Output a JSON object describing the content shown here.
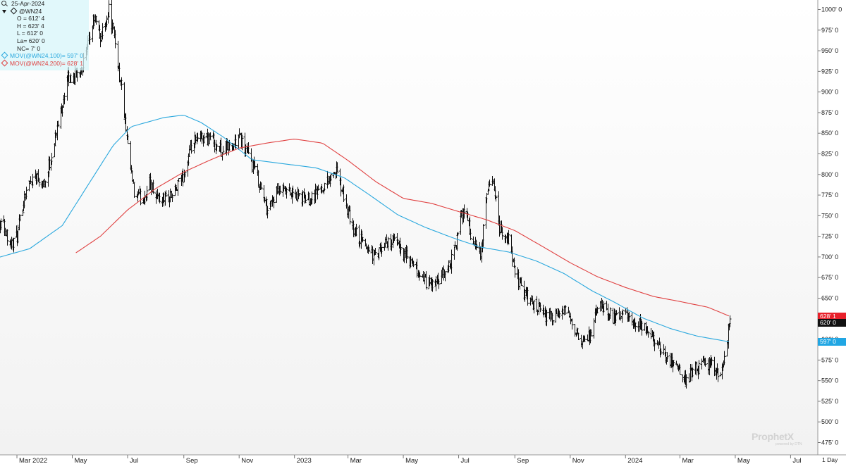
{
  "legend": {
    "date": "25-Apr-2024",
    "symbol": "@WN24",
    "open": "O = 612' 4",
    "high": "H = 623' 4",
    "low": "L = 612' 0",
    "last": "La= 620' 0",
    "net_change": "NC= 7' 0",
    "ma100_label": "MOV(@WN24,100)= 597' 0",
    "ma200_label": "MOV(@WN24,200)= 628' 1"
  },
  "price_tags": {
    "ma200": "628' 1",
    "last": "620' 0",
    "ma100": "597' 0"
  },
  "watermark": {
    "brand": "ProphetX",
    "sub": "powered by DTN"
  },
  "interval": "1 Day",
  "colors": {
    "bars": "#111111",
    "ma100": "#2aa8de",
    "ma200": "#e04040",
    "tag_ma200": "#e8212b",
    "tag_ma100": "#21a6e3",
    "tag_last": "#111111"
  },
  "chart_data": {
    "type": "ohlc",
    "symbol": "@WN24",
    "y_ticks": [
      "1000' 0",
      "975' 0",
      "950' 0",
      "925' 0",
      "900' 0",
      "875' 0",
      "850' 0",
      "825' 0",
      "800' 0",
      "775' 0",
      "750' 0",
      "725' 0",
      "700' 0",
      "675' 0",
      "650' 0",
      "625' 0",
      "600' 0",
      "575' 0",
      "550' 0",
      "525' 0",
      "500' 0",
      "475' 0"
    ],
    "y_tick_values": [
      1000,
      975,
      950,
      925,
      900,
      875,
      850,
      825,
      800,
      775,
      750,
      725,
      700,
      675,
      650,
      625,
      600,
      575,
      550,
      525,
      500,
      475
    ],
    "ylim": [
      466,
      1012
    ],
    "x_ticks": [
      "Mar 2022",
      "May",
      "Jul",
      "Sep",
      "Nov",
      "2023",
      "Mar",
      "May",
      "Jul",
      "Sep",
      "Nov",
      "2024",
      "Mar",
      "May",
      "Jul"
    ],
    "x_tick_dates": [
      "2022-03-01",
      "2022-05-01",
      "2022-07-01",
      "2022-09-01",
      "2022-11-01",
      "2023-01-01",
      "2023-03-01",
      "2023-05-01",
      "2023-07-01",
      "2023-09-01",
      "2023-11-01",
      "2024-01-01",
      "2024-03-01",
      "2024-05-01",
      "2024-07-01"
    ],
    "xlim": [
      "2022-02-01",
      "2024-07-31"
    ],
    "price_path": [
      [
        "2022-02-01",
        730
      ],
      [
        "2022-02-12",
        745
      ],
      [
        "2022-02-22",
        715
      ],
      [
        "2022-03-01",
        725
      ],
      [
        "2022-03-10",
        780
      ],
      [
        "2022-03-20",
        800
      ],
      [
        "2022-04-01",
        790
      ],
      [
        "2022-04-15",
        860
      ],
      [
        "2022-04-25",
        915
      ],
      [
        "2022-05-05",
        920
      ],
      [
        "2022-05-15",
        940
      ],
      [
        "2022-05-25",
        990
      ],
      [
        "2022-06-01",
        965
      ],
      [
        "2022-06-10",
        1000
      ],
      [
        "2022-06-17",
        960
      ],
      [
        "2022-06-25",
        895
      ],
      [
        "2022-07-01",
        830
      ],
      [
        "2022-07-08",
        775
      ],
      [
        "2022-07-18",
        770
      ],
      [
        "2022-07-25",
        790
      ],
      [
        "2022-08-05",
        770
      ],
      [
        "2022-08-20",
        775
      ],
      [
        "2022-09-01",
        800
      ],
      [
        "2022-09-10",
        835
      ],
      [
        "2022-09-20",
        845
      ],
      [
        "2022-10-01",
        845
      ],
      [
        "2022-10-10",
        830
      ],
      [
        "2022-10-25",
        835
      ],
      [
        "2022-11-01",
        845
      ],
      [
        "2022-11-10",
        825
      ],
      [
        "2022-11-20",
        800
      ],
      [
        "2022-12-01",
        760
      ],
      [
        "2022-12-15",
        780
      ],
      [
        "2023-01-01",
        775
      ],
      [
        "2023-01-15",
        770
      ],
      [
        "2023-02-01",
        785
      ],
      [
        "2023-02-15",
        805
      ],
      [
        "2023-02-25",
        770
      ],
      [
        "2023-03-05",
        735
      ],
      [
        "2023-03-15",
        720
      ],
      [
        "2023-03-31",
        700
      ],
      [
        "2023-04-15",
        720
      ],
      [
        "2023-04-25",
        715
      ],
      [
        "2023-05-10",
        690
      ],
      [
        "2023-05-25",
        670
      ],
      [
        "2023-06-05",
        665
      ],
      [
        "2023-06-15",
        680
      ],
      [
        "2023-06-25",
        700
      ],
      [
        "2023-07-01",
        735
      ],
      [
        "2023-07-08",
        765
      ],
      [
        "2023-07-15",
        720
      ],
      [
        "2023-07-25",
        700
      ],
      [
        "2023-08-01",
        775
      ],
      [
        "2023-08-08",
        795
      ],
      [
        "2023-08-15",
        735
      ],
      [
        "2023-08-25",
        720
      ],
      [
        "2023-09-01",
        680
      ],
      [
        "2023-09-15",
        650
      ],
      [
        "2023-10-01",
        630
      ],
      [
        "2023-10-15",
        625
      ],
      [
        "2023-10-25",
        635
      ],
      [
        "2023-11-05",
        620
      ],
      [
        "2023-11-12",
        590
      ],
      [
        "2023-11-25",
        610
      ],
      [
        "2023-12-01",
        640
      ],
      [
        "2023-12-12",
        635
      ],
      [
        "2023-12-20",
        625
      ],
      [
        "2024-01-01",
        630
      ],
      [
        "2024-01-10",
        615
      ],
      [
        "2024-01-20",
        615
      ],
      [
        "2024-02-01",
        600
      ],
      [
        "2024-02-15",
        580
      ],
      [
        "2024-02-25",
        570
      ],
      [
        "2024-03-05",
        550
      ],
      [
        "2024-03-15",
        560
      ],
      [
        "2024-03-25",
        570
      ],
      [
        "2024-04-05",
        570
      ],
      [
        "2024-04-15",
        555
      ],
      [
        "2024-04-20",
        590
      ],
      [
        "2024-04-25",
        620
      ]
    ],
    "ma100_path": [
      [
        "2022-02-01",
        697
      ],
      [
        "2022-03-15",
        710
      ],
      [
        "2022-04-20",
        738
      ],
      [
        "2022-05-20",
        790
      ],
      [
        "2022-06-15",
        835
      ],
      [
        "2022-07-05",
        858
      ],
      [
        "2022-08-10",
        869
      ],
      [
        "2022-09-01",
        872
      ],
      [
        "2022-09-20",
        863
      ],
      [
        "2022-10-15",
        845
      ],
      [
        "2022-11-15",
        818
      ],
      [
        "2022-12-20",
        813
      ],
      [
        "2023-01-25",
        808
      ],
      [
        "2023-02-25",
        796
      ],
      [
        "2023-03-25",
        775
      ],
      [
        "2023-04-25",
        751
      ],
      [
        "2023-05-25",
        736
      ],
      [
        "2023-06-25",
        723
      ],
      [
        "2023-07-25",
        712
      ],
      [
        "2023-08-25",
        706
      ],
      [
        "2023-09-25",
        695
      ],
      [
        "2023-10-25",
        680
      ],
      [
        "2023-11-25",
        659
      ],
      [
        "2023-12-20",
        645
      ],
      [
        "2024-01-20",
        626
      ],
      [
        "2024-02-20",
        613
      ],
      [
        "2024-03-20",
        604
      ],
      [
        "2024-04-25",
        597
      ]
    ],
    "ma200_path": [
      [
        "2022-05-05",
        705
      ],
      [
        "2022-06-01",
        725
      ],
      [
        "2022-07-01",
        757
      ],
      [
        "2022-08-01",
        783
      ],
      [
        "2022-09-01",
        803
      ],
      [
        "2022-10-01",
        818
      ],
      [
        "2022-11-01",
        832
      ],
      [
        "2022-12-01",
        838
      ],
      [
        "2023-01-01",
        843
      ],
      [
        "2023-02-01",
        838
      ],
      [
        "2023-03-01",
        817
      ],
      [
        "2023-04-01",
        791
      ],
      [
        "2023-05-01",
        771
      ],
      [
        "2023-06-01",
        765
      ],
      [
        "2023-07-01",
        755
      ],
      [
        "2023-08-01",
        745
      ],
      [
        "2023-09-01",
        732
      ],
      [
        "2023-10-01",
        713
      ],
      [
        "2023-11-01",
        693
      ],
      [
        "2023-12-01",
        676
      ],
      [
        "2024-01-01",
        663
      ],
      [
        "2024-02-01",
        652
      ],
      [
        "2024-03-01",
        646
      ],
      [
        "2024-04-01",
        639
      ],
      [
        "2024-04-25",
        628
      ]
    ],
    "last_price": 620,
    "ma100_last": 597,
    "ma200_last": 628.125,
    "grid": false
  }
}
